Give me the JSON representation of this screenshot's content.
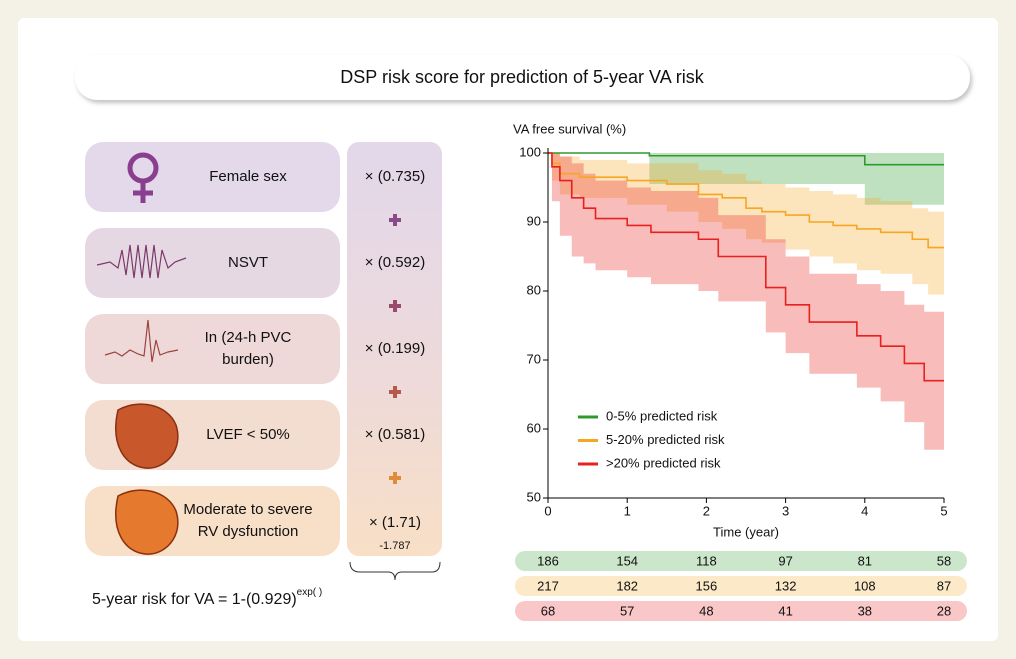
{
  "title": "DSP risk score for prediction of 5-year VA risk",
  "factors": [
    {
      "label": [
        "Female sex"
      ],
      "coefficient": "× (0.735)"
    },
    {
      "label": [
        "NSVT"
      ],
      "coefficient": "× (0.592)"
    },
    {
      "label": [
        "In (24-h PVC",
        "burden)"
      ],
      "coefficient": "× (0.199)"
    },
    {
      "label": [
        "LVEF < 50%"
      ],
      "coefficient": "× (0.581)"
    },
    {
      "label": [
        "Moderate to severe",
        "RV dysfunction"
      ],
      "coefficient": "× (1.71)"
    }
  ],
  "intercept": "-1.787",
  "formula": {
    "text": "5-year risk for VA = 1-(0.929)",
    "exponent": "exp( )"
  },
  "chart_data": {
    "type": "line",
    "step": "post",
    "y_label": "VA free survival (%)",
    "x_label": "Time (year)",
    "xlim": [
      0,
      5
    ],
    "ylim": [
      50,
      100
    ],
    "xticks": [
      0,
      1,
      2,
      3,
      4,
      5
    ],
    "yticks": [
      50,
      60,
      70,
      80,
      90,
      100
    ],
    "grid": false,
    "legend": "lower left",
    "series": [
      {
        "name": "0-5% predicted risk",
        "color": "#2e9a2e",
        "x": [
          0,
          1.28,
          4.0,
          5
        ],
        "values": [
          100,
          99.6,
          98.3,
          98.3
        ],
        "ci_lower": [
          100,
          95.5,
          92.5,
          92.5
        ],
        "ci_upper": [
          100,
          100,
          100,
          100
        ]
      },
      {
        "name": "5-20% predicted risk",
        "color": "#f5a623",
        "x": [
          0,
          0.05,
          0.15,
          0.4,
          1.0,
          1.5,
          1.9,
          2.2,
          2.5,
          2.7,
          3.0,
          3.3,
          3.6,
          3.9,
          4.2,
          4.6,
          4.8,
          5
        ],
        "values": [
          100,
          98.5,
          97,
          96.5,
          96,
          95.5,
          94,
          93.5,
          92,
          91.5,
          91,
          90,
          89.5,
          89,
          88.5,
          87.5,
          86.3,
          86.3
        ],
        "ci_lower": [
          100,
          96,
          94,
          93.5,
          92.5,
          91.5,
          90,
          89,
          87.5,
          87,
          86,
          85,
          84,
          83,
          82.5,
          81,
          79.5,
          79.5
        ],
        "ci_upper": [
          100,
          100,
          99.5,
          99,
          98.5,
          98.5,
          97.5,
          97,
          96,
          95.5,
          95,
          94.5,
          94,
          93.5,
          93,
          92,
          91.5,
          91.5
        ]
      },
      {
        "name": ">20% predicted risk",
        "color": "#e8201e",
        "x": [
          0,
          0.05,
          0.15,
          0.3,
          0.45,
          0.6,
          1.0,
          1.3,
          1.9,
          2.15,
          2.75,
          3.0,
          3.3,
          3.9,
          4.2,
          4.5,
          4.75,
          5
        ],
        "values": [
          100,
          98,
          96,
          93.5,
          92,
          90.5,
          89.5,
          88.5,
          87.5,
          85,
          80.5,
          78,
          75.5,
          73.5,
          72,
          69.5,
          67,
          67
        ],
        "ci_lower": [
          100,
          93,
          88,
          85,
          84,
          83,
          82,
          81,
          80,
          78.5,
          74,
          71,
          68,
          66,
          64,
          61,
          57,
          53
        ],
        "ci_upper": [
          100,
          100,
          99.5,
          98.5,
          97,
          96,
          95,
          94.5,
          93.5,
          91,
          87.5,
          85,
          82.5,
          81,
          80,
          78,
          77,
          77
        ]
      }
    ],
    "number_at_risk": [
      [
        186,
        154,
        118,
        97,
        81,
        58
      ],
      [
        217,
        182,
        156,
        132,
        108,
        87
      ],
      [
        68,
        57,
        48,
        41,
        38,
        28
      ]
    ]
  }
}
